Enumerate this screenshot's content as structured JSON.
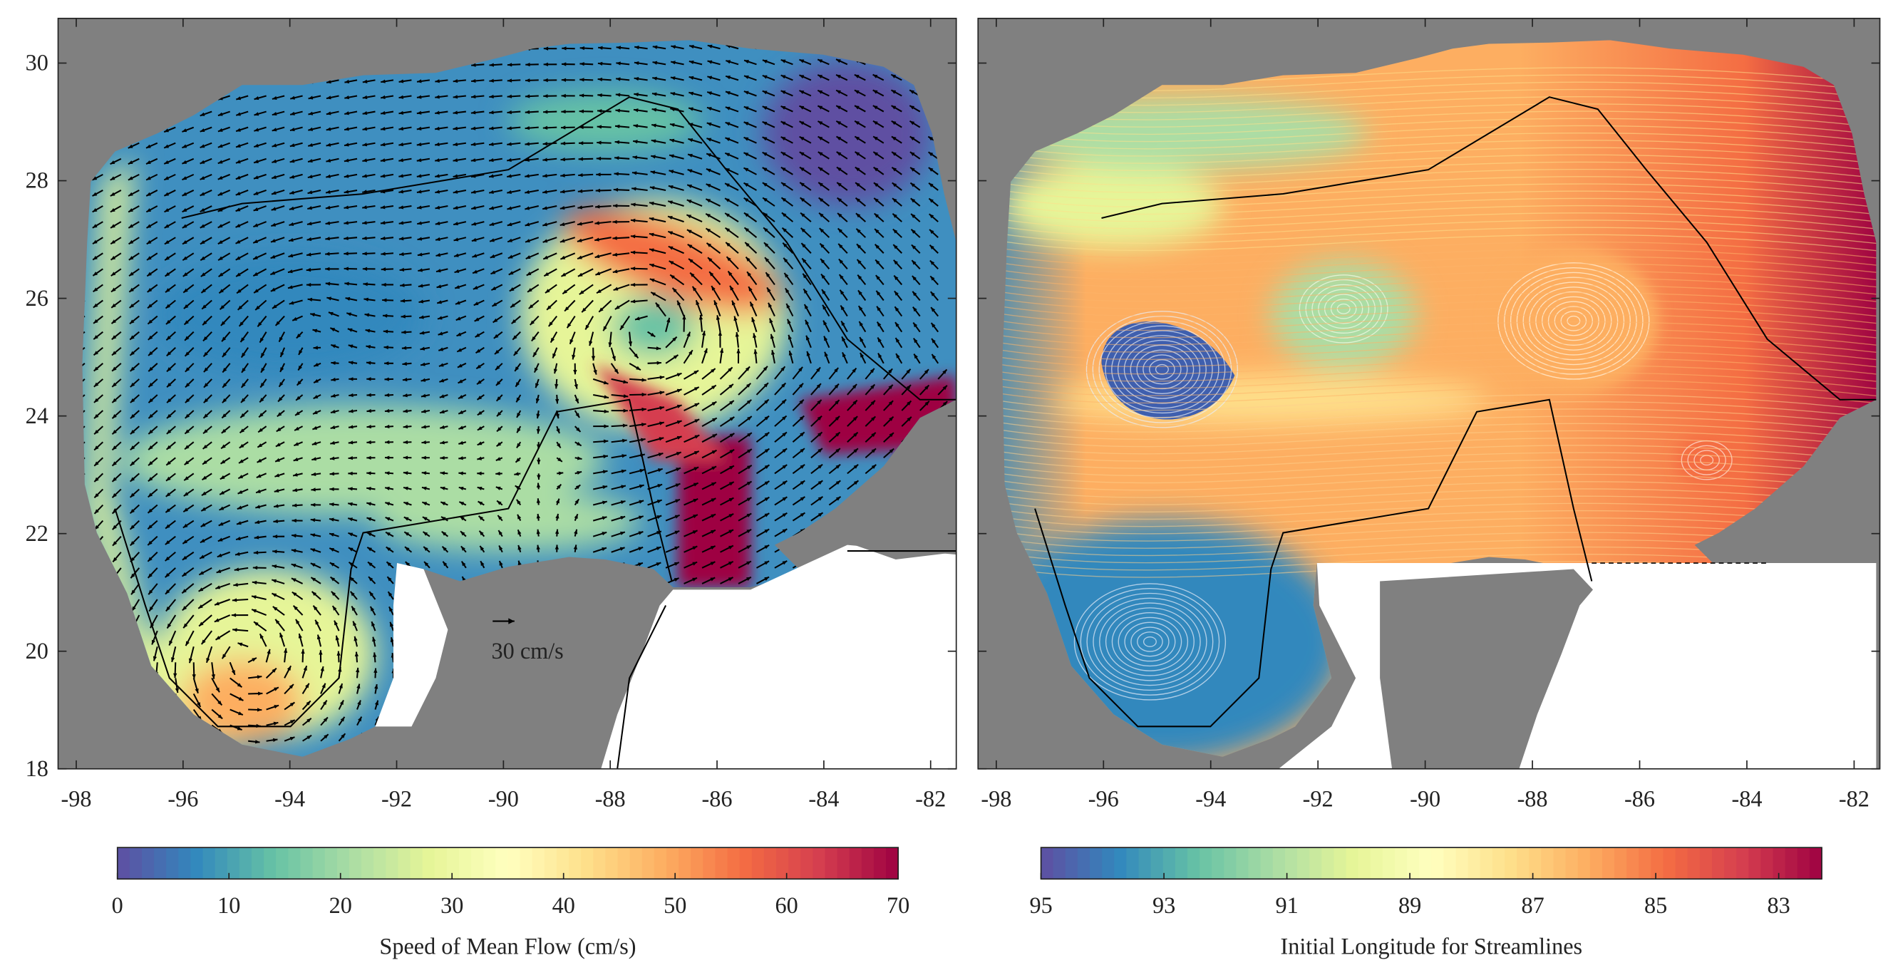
{
  "map": {
    "xlim": [
      -98.34,
      -81.52
    ],
    "ylim": [
      18,
      30.76
    ],
    "xticks": [
      -98,
      -96,
      -94,
      -92,
      -90,
      -88,
      -86,
      -84,
      -82
    ],
    "yticks": [
      18,
      20,
      22,
      24,
      26,
      28,
      30
    ]
  },
  "panels": [
    {
      "colorbar": {
        "label": "Speed of Mean Flow (cm/s)",
        "clim": [
          0,
          70
        ],
        "ticks": [
          0,
          10,
          20,
          30,
          40,
          50,
          60,
          70
        ]
      },
      "annotation": "30 cm/s"
    },
    {
      "colorbar": {
        "label": "Initial Longitude for Streamlines",
        "clim": [
          95,
          82.3
        ],
        "ticks": [
          95,
          93,
          91,
          89,
          87,
          85,
          83
        ]
      }
    }
  ]
}
